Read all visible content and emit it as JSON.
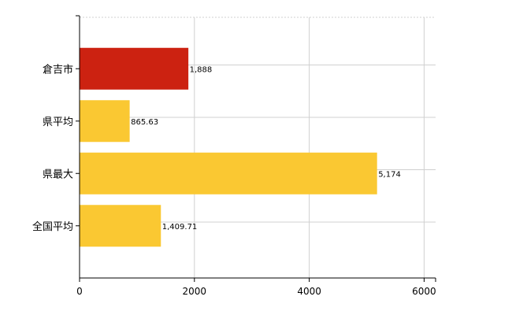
{
  "chart_data": {
    "type": "bar",
    "orientation": "horizontal",
    "categories": [
      "倉吉市",
      "県平均",
      "県最大",
      "全国平均"
    ],
    "values": [
      1888,
      865.63,
      5174,
      1409.71
    ],
    "value_labels": [
      "1,888",
      "865.63",
      "5,174",
      "1,409.71"
    ],
    "x_ticks": [
      "0",
      "2000",
      "4000",
      "6000"
    ],
    "xlim": [
      0,
      6200
    ],
    "grid": true,
    "legend": "none",
    "title": "",
    "xlabel": "",
    "ylabel": "",
    "colors": {
      "highlight": "#cc2211",
      "default": "#fac832",
      "grid": "#d0d0d0",
      "axis": "#000000"
    },
    "highlight_index": 0
  }
}
